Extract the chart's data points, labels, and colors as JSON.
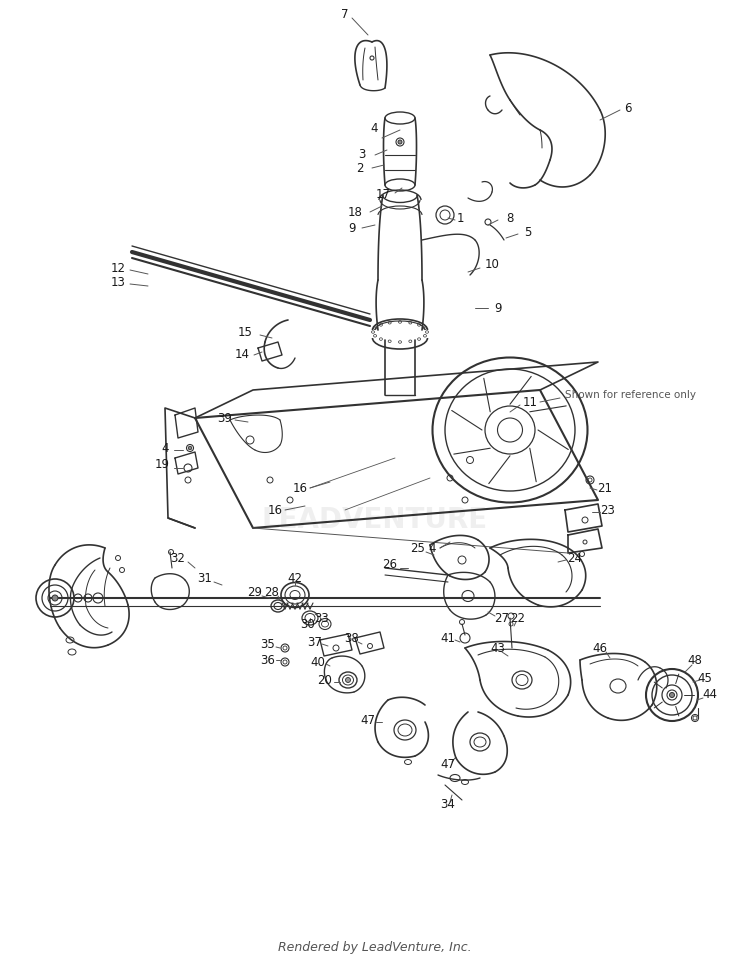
{
  "background_color": "#ffffff",
  "line_color": "#323232",
  "text_color": "#1a1a1a",
  "footer_text": "Rendered by LeadVenture, Inc.",
  "reference_note": "Shown for reference only",
  "watermark_text": "LEADVENTURE",
  "watermark_color": "#cccccc",
  "watermark_alpha": 0.3,
  "fig_width": 7.5,
  "fig_height": 9.68,
  "dpi": 100
}
